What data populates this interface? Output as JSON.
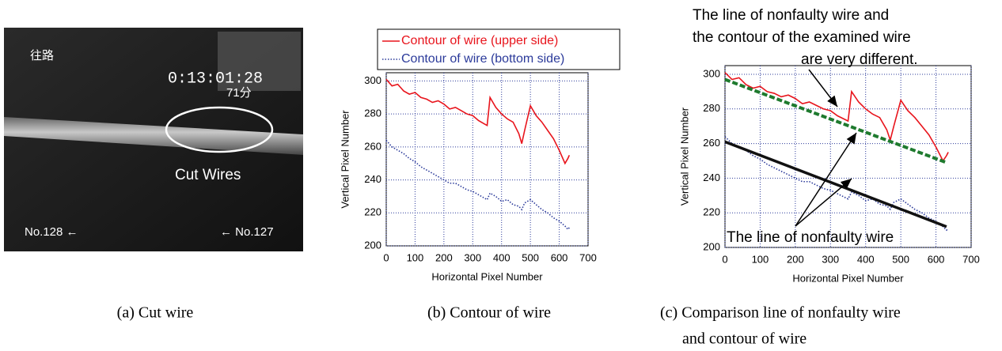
{
  "photo": {
    "labels": [
      "往路",
      "0:13:01:28",
      "71分",
      "Cut Wires",
      "No.128 ←",
      "← No.127"
    ]
  },
  "chart_data": [
    {
      "type": "line",
      "xlabel": "Horizontal Pixel Number",
      "ylabel": "Vertical Pixel Number",
      "xlim": [
        0,
        700
      ],
      "xticks": [
        0,
        100,
        200,
        300,
        400,
        500,
        600,
        700
      ],
      "ylim": [
        200,
        305
      ],
      "yticks": [
        200,
        220,
        240,
        260,
        280,
        300
      ],
      "grid": true,
      "legend": "top",
      "series": [
        {
          "name": "Contour of wire (upper side)",
          "color": "#e8141c",
          "style": "solid",
          "x": [
            0,
            20,
            40,
            60,
            80,
            100,
            120,
            140,
            160,
            180,
            200,
            220,
            240,
            260,
            280,
            300,
            320,
            340,
            350,
            360,
            380,
            400,
            420,
            440,
            460,
            470,
            480,
            500,
            520,
            540,
            560,
            580,
            600,
            620,
            630,
            635
          ],
          "values": [
            301,
            297,
            298,
            294,
            292,
            293,
            290,
            289,
            287,
            288,
            286,
            283,
            284,
            282,
            280,
            279,
            276,
            274,
            273,
            290,
            284,
            280,
            277,
            275,
            268,
            262,
            270,
            285,
            279,
            275,
            270,
            265,
            258,
            250,
            253,
            255
          ]
        },
        {
          "name": "Contour of wire (bottom side)",
          "color": "#2b3a9a",
          "style": "dotted",
          "x": [
            0,
            20,
            40,
            60,
            80,
            100,
            120,
            140,
            160,
            180,
            200,
            220,
            240,
            260,
            280,
            300,
            320,
            340,
            350,
            360,
            380,
            400,
            420,
            440,
            460,
            470,
            480,
            500,
            520,
            540,
            560,
            580,
            600,
            620,
            630,
            635
          ],
          "values": [
            264,
            260,
            258,
            256,
            253,
            251,
            248,
            246,
            244,
            242,
            240,
            238,
            238,
            236,
            234,
            233,
            231,
            229,
            228,
            232,
            230,
            227,
            228,
            225,
            224,
            222,
            226,
            228,
            225,
            222,
            220,
            217,
            215,
            212,
            210,
            211
          ]
        }
      ]
    },
    {
      "type": "line",
      "xlabel": "Horizontal Pixel Number",
      "ylabel": "Vertical Pixel Number",
      "xlim": [
        0,
        700
      ],
      "xticks": [
        0,
        100,
        200,
        300,
        400,
        500,
        600,
        700
      ],
      "ylim": [
        200,
        305
      ],
      "yticks": [
        200,
        220,
        240,
        260,
        280,
        300
      ],
      "grid": true,
      "annotations": [
        "The line of nonfaulty wire and",
        "the contour of the examined wire",
        "are very different.",
        "The line of nonfaulty wire"
      ],
      "series": [
        {
          "color": "#e8141c",
          "style": "solid",
          "x": [
            0,
            20,
            40,
            60,
            80,
            100,
            120,
            140,
            160,
            180,
            200,
            220,
            240,
            260,
            280,
            300,
            320,
            340,
            350,
            360,
            380,
            400,
            420,
            440,
            460,
            470,
            480,
            500,
            520,
            540,
            560,
            580,
            600,
            620,
            630,
            635
          ],
          "values": [
            301,
            297,
            298,
            294,
            292,
            293,
            290,
            289,
            287,
            288,
            286,
            283,
            284,
            282,
            280,
            279,
            276,
            274,
            273,
            290,
            284,
            280,
            277,
            275,
            268,
            262,
            270,
            285,
            279,
            275,
            270,
            265,
            258,
            250,
            253,
            255
          ]
        },
        {
          "color": "#2b3a9a",
          "style": "dotted",
          "x": [
            0,
            20,
            40,
            60,
            80,
            100,
            120,
            140,
            160,
            180,
            200,
            220,
            240,
            260,
            280,
            300,
            320,
            340,
            350,
            360,
            380,
            400,
            420,
            440,
            460,
            470,
            480,
            500,
            520,
            540,
            560,
            580,
            600,
            620,
            630,
            635
          ],
          "values": [
            264,
            260,
            258,
            256,
            253,
            251,
            248,
            246,
            244,
            242,
            240,
            238,
            238,
            236,
            234,
            233,
            231,
            229,
            228,
            232,
            230,
            227,
            228,
            225,
            224,
            222,
            226,
            228,
            225,
            222,
            220,
            217,
            215,
            212,
            210,
            211
          ]
        },
        {
          "color": "#1e7a2e",
          "style": "dashed",
          "x": [
            0,
            630
          ],
          "values": [
            297,
            249
          ]
        },
        {
          "color": "#111111",
          "style": "thick",
          "x": [
            0,
            630
          ],
          "values": [
            261,
            212
          ]
        }
      ]
    }
  ],
  "captions": [
    "(a) Cut wire",
    "(b) Contour of wire",
    "(c) Comparison line of nonfaulty wire",
    "and contour of wire"
  ]
}
